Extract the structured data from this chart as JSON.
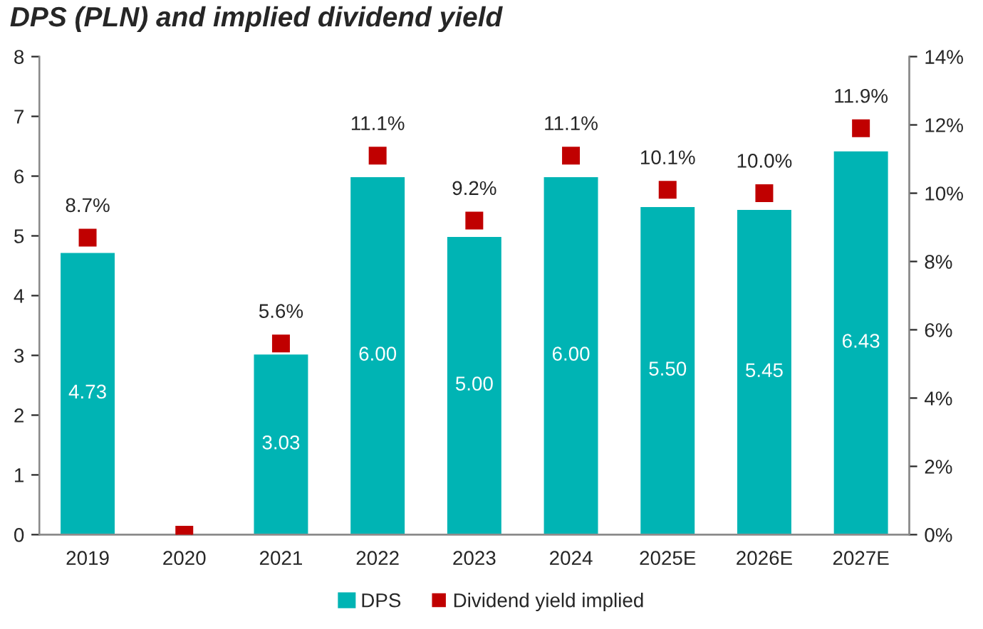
{
  "chart_data": {
    "type": "bar",
    "title": "DPS (PLN) and implied dividend yield",
    "categories": [
      "2019",
      "2020",
      "2021",
      "2022",
      "2023",
      "2024",
      "2025E",
      "2026E",
      "2027E"
    ],
    "series": [
      {
        "name": "DPS",
        "color": "#00b4b4",
        "values": [
          4.73,
          null,
          3.03,
          6.0,
          5.0,
          6.0,
          5.5,
          5.45,
          6.43
        ],
        "value_labels": [
          "4.73",
          null,
          "3.03",
          "6.00",
          "5.00",
          "6.00",
          "5.50",
          "5.45",
          "6.43"
        ]
      },
      {
        "name": "Dividend yield implied",
        "type": "scatter",
        "axis": "y2",
        "marker": "square",
        "color": "#c00000",
        "values": [
          8.7,
          0,
          5.6,
          11.1,
          9.2,
          11.1,
          10.1,
          10.0,
          11.9
        ],
        "value_labels": [
          "8.7%",
          null,
          "5.6%",
          "11.1%",
          "9.2%",
          "11.1%",
          "10.1%",
          "10.0%",
          "11.9%"
        ]
      }
    ],
    "ylim": [
      0,
      8
    ],
    "yticks": [
      0,
      1,
      2,
      3,
      4,
      5,
      6,
      7,
      8
    ],
    "y2lim": [
      0,
      14
    ],
    "y2ticks": [
      {
        "value": 0,
        "label": "0%"
      },
      {
        "value": 2,
        "label": "2%"
      },
      {
        "value": 4,
        "label": "4%"
      },
      {
        "value": 6,
        "label": "6%"
      },
      {
        "value": 8,
        "label": "8%"
      },
      {
        "value": 10,
        "label": "10%"
      },
      {
        "value": 12,
        "label": "12%"
      },
      {
        "value": 14,
        "label": "14%"
      }
    ],
    "grid": false,
    "legend": "bottom"
  }
}
